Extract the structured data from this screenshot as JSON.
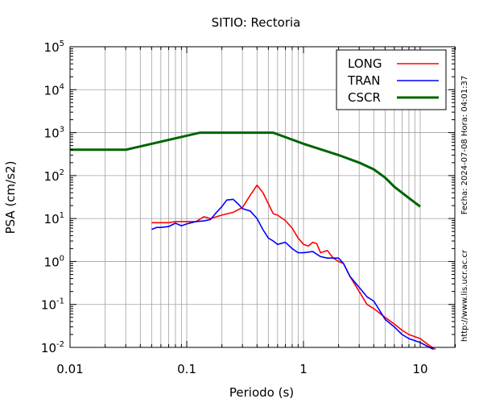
{
  "chart_data": {
    "type": "line",
    "title": "SITIO: Rectoria",
    "xlabel": "Periodo (s)",
    "ylabel": "PSA (cm/s2)",
    "xscale": "log",
    "yscale": "log",
    "xlim": [
      0.01,
      20
    ],
    "ylim": [
      0.01,
      100000
    ],
    "grid": "minor-vertical, major-horizontal",
    "legend_position": "top-right",
    "x_ticks": [
      "0.01",
      "0.1",
      "1",
      "10"
    ],
    "y_ticks": [
      {
        "base": "10",
        "exp": "-2"
      },
      {
        "base": "10",
        "exp": "-1"
      },
      {
        "base": "10",
        "exp": "0"
      },
      {
        "base": "10",
        "exp": "1"
      },
      {
        "base": "10",
        "exp": "2"
      },
      {
        "base": "10",
        "exp": "3"
      },
      {
        "base": "10",
        "exp": "4"
      },
      {
        "base": "10",
        "exp": "5"
      }
    ],
    "side_text": {
      "date": "Fecha: 2024-07-08 Hora: 04:01:37",
      "url": "http://www.lis.ucr.ac.cr"
    },
    "series": [
      {
        "name": "LONG",
        "color": "#ff0000",
        "x": [
          0.05,
          0.06,
          0.07,
          0.08,
          0.1,
          0.12,
          0.14,
          0.16,
          0.2,
          0.25,
          0.3,
          0.35,
          0.4,
          0.45,
          0.5,
          0.55,
          0.6,
          0.7,
          0.8,
          0.9,
          1.0,
          1.1,
          1.2,
          1.3,
          1.4,
          1.5,
          1.6,
          1.8,
          2.0,
          2.2,
          2.5,
          3.0,
          3.5,
          4.0,
          5.0,
          6.0,
          7.0,
          8.0,
          10.0,
          12.0,
          13.5
        ],
        "y": [
          8,
          8,
          8,
          8.5,
          8.5,
          8.5,
          11,
          10,
          12,
          14,
          18,
          35,
          60,
          40,
          22,
          13,
          12,
          9,
          6,
          3.5,
          2.5,
          2.3,
          2.8,
          2.6,
          1.6,
          1.7,
          1.8,
          1.2,
          1.0,
          0.9,
          0.45,
          0.2,
          0.1,
          0.08,
          0.05,
          0.035,
          0.025,
          0.02,
          0.016,
          0.011,
          0.009
        ]
      },
      {
        "name": "TRAN",
        "color": "#0000ff",
        "x": [
          0.05,
          0.055,
          0.06,
          0.07,
          0.08,
          0.09,
          0.1,
          0.12,
          0.14,
          0.16,
          0.18,
          0.2,
          0.22,
          0.25,
          0.28,
          0.3,
          0.35,
          0.4,
          0.45,
          0.5,
          0.55,
          0.6,
          0.7,
          0.8,
          0.9,
          1.0,
          1.2,
          1.4,
          1.6,
          1.8,
          2.0,
          2.2,
          2.5,
          3.0,
          3.5,
          4.0,
          5.0,
          6.0,
          7.0,
          8.0,
          10.0,
          12.0,
          13.0
        ],
        "y": [
          5.6,
          6.2,
          6.2,
          6.5,
          7.8,
          6.8,
          7.5,
          8.5,
          8.8,
          9.5,
          14,
          19,
          27,
          28,
          21,
          17,
          15,
          10,
          5.5,
          3.5,
          3.0,
          2.5,
          2.8,
          2.0,
          1.6,
          1.6,
          1.7,
          1.3,
          1.2,
          1.2,
          1.2,
          0.9,
          0.45,
          0.25,
          0.15,
          0.12,
          0.045,
          0.03,
          0.02,
          0.016,
          0.013,
          0.01,
          0.009
        ]
      },
      {
        "name": "CSCR",
        "color": "#006400",
        "x": [
          0.01,
          0.03,
          0.13,
          0.55,
          1.0,
          2.0,
          3.0,
          4.0,
          5.0,
          6.0,
          8.0,
          10.0
        ],
        "y": [
          400,
          400,
          1000,
          1000,
          550,
          300,
          200,
          140,
          90,
          55,
          30,
          19
        ]
      }
    ]
  }
}
